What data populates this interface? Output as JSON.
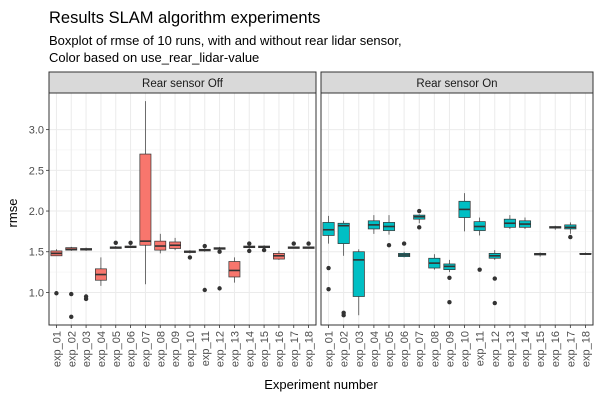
{
  "chart_data": {
    "type": "boxplot",
    "title": "Results SLAM algorithm experiments",
    "subtitle_lines": [
      "Boxplot of rmse of 10 runs, with and without rear lidar sensor,",
      "Color based on use_rear_lidar-value"
    ],
    "xlabel": "Experiment number",
    "ylabel": "rmse",
    "ylim": [
      0.6,
      3.45
    ],
    "yticks": [
      1.0,
      1.5,
      2.0,
      2.5,
      3.0
    ],
    "ytick_labels": [
      "1.0",
      "1.5",
      "2.0",
      "2.5",
      "3.0"
    ],
    "grid": true,
    "legend": "none",
    "categories": [
      "exp_01",
      "exp_02",
      "exp_03",
      "exp_04",
      "exp_05",
      "exp_06",
      "exp_07",
      "exp_08",
      "exp_09",
      "exp_10",
      "exp_11",
      "exp_12",
      "exp_13",
      "exp_14",
      "exp_15",
      "exp_16",
      "exp_17",
      "exp_18"
    ],
    "panels": [
      {
        "strip": "Rear sensor Off",
        "fill": "#F8766D",
        "boxes": [
          {
            "min": 1.45,
            "q1": 1.45,
            "median": 1.48,
            "q3": 1.51,
            "max": 1.53,
            "outliers": [
              0.99
            ]
          },
          {
            "min": 1.51,
            "q1": 1.52,
            "median": 1.53,
            "q3": 1.55,
            "max": 1.56,
            "outliers": [
              0.98,
              0.7
            ]
          },
          {
            "min": 1.51,
            "q1": 1.52,
            "median": 1.53,
            "q3": 1.54,
            "max": 1.55,
            "outliers": [
              0.95,
              0.92
            ]
          },
          {
            "min": 1.08,
            "q1": 1.15,
            "median": 1.22,
            "q3": 1.29,
            "max": 1.43,
            "outliers": []
          },
          {
            "min": 1.54,
            "q1": 1.54,
            "median": 1.55,
            "q3": 1.56,
            "max": 1.57,
            "outliers": [
              1.61
            ]
          },
          {
            "min": 1.55,
            "q1": 1.55,
            "median": 1.56,
            "q3": 1.57,
            "max": 1.58,
            "outliers": [
              1.61
            ]
          },
          {
            "min": 1.1,
            "q1": 1.58,
            "median": 1.63,
            "q3": 2.7,
            "max": 3.35,
            "outliers": []
          },
          {
            "min": 1.48,
            "q1": 1.52,
            "median": 1.57,
            "q3": 1.63,
            "max": 1.72,
            "outliers": []
          },
          {
            "min": 1.52,
            "q1": 1.54,
            "median": 1.58,
            "q3": 1.62,
            "max": 1.67,
            "outliers": []
          },
          {
            "min": 1.48,
            "q1": 1.49,
            "median": 1.5,
            "q3": 1.51,
            "max": 1.52,
            "outliers": [
              1.43
            ]
          },
          {
            "min": 1.5,
            "q1": 1.51,
            "median": 1.52,
            "q3": 1.53,
            "max": 1.54,
            "outliers": [
              1.57,
              1.03
            ]
          },
          {
            "min": 1.52,
            "q1": 1.53,
            "median": 1.54,
            "q3": 1.55,
            "max": 1.56,
            "outliers": [
              1.5,
              1.05
            ]
          },
          {
            "min": 1.12,
            "q1": 1.19,
            "median": 1.27,
            "q3": 1.38,
            "max": 1.43,
            "outliers": []
          },
          {
            "min": 1.54,
            "q1": 1.55,
            "median": 1.56,
            "q3": 1.57,
            "max": 1.58,
            "outliers": [
              1.6,
              1.51
            ]
          },
          {
            "min": 1.54,
            "q1": 1.55,
            "median": 1.56,
            "q3": 1.57,
            "max": 1.58,
            "outliers": [
              1.52
            ]
          },
          {
            "min": 1.4,
            "q1": 1.41,
            "median": 1.45,
            "q3": 1.48,
            "max": 1.51,
            "outliers": []
          },
          {
            "min": 1.54,
            "q1": 1.54,
            "median": 1.55,
            "q3": 1.56,
            "max": 1.56,
            "outliers": [
              1.6
            ]
          },
          {
            "min": 1.54,
            "q1": 1.54,
            "median": 1.55,
            "q3": 1.56,
            "max": 1.56,
            "outliers": [
              1.6
            ]
          }
        ]
      },
      {
        "strip": "Rear sensor On",
        "fill": "#00BFC4",
        "boxes": [
          {
            "min": 1.6,
            "q1": 1.7,
            "median": 1.77,
            "q3": 1.86,
            "max": 1.94,
            "outliers": [
              1.3,
              1.04
            ]
          },
          {
            "min": 1.45,
            "q1": 1.6,
            "median": 1.82,
            "q3": 1.85,
            "max": 1.88,
            "outliers": [
              0.75,
              0.72
            ]
          },
          {
            "min": 0.72,
            "q1": 0.95,
            "median": 1.4,
            "q3": 1.5,
            "max": 1.53,
            "outliers": []
          },
          {
            "min": 1.72,
            "q1": 1.78,
            "median": 1.83,
            "q3": 1.88,
            "max": 1.95,
            "outliers": []
          },
          {
            "min": 1.71,
            "q1": 1.76,
            "median": 1.81,
            "q3": 1.86,
            "max": 1.95,
            "outliers": [
              1.58
            ]
          },
          {
            "min": 1.43,
            "q1": 1.44,
            "median": 1.46,
            "q3": 1.48,
            "max": 1.5,
            "outliers": [
              1.6
            ]
          },
          {
            "min": 1.85,
            "q1": 1.9,
            "median": 1.93,
            "q3": 1.95,
            "max": 1.96,
            "outliers": [
              2.0,
              1.8
            ]
          },
          {
            "min": 1.28,
            "q1": 1.3,
            "median": 1.36,
            "q3": 1.42,
            "max": 1.47,
            "outliers": []
          },
          {
            "min": 1.25,
            "q1": 1.28,
            "median": 1.32,
            "q3": 1.35,
            "max": 1.4,
            "outliers": [
              1.18,
              0.88
            ]
          },
          {
            "min": 1.75,
            "q1": 1.92,
            "median": 2.02,
            "q3": 2.12,
            "max": 2.22,
            "outliers": []
          },
          {
            "min": 1.7,
            "q1": 1.76,
            "median": 1.81,
            "q3": 1.87,
            "max": 1.92,
            "outliers": [
              1.28
            ]
          },
          {
            "min": 1.4,
            "q1": 1.42,
            "median": 1.45,
            "q3": 1.48,
            "max": 1.52,
            "outliers": [
              1.17,
              0.87
            ]
          },
          {
            "min": 1.78,
            "q1": 1.8,
            "median": 1.85,
            "q3": 1.9,
            "max": 1.95,
            "outliers": []
          },
          {
            "min": 1.78,
            "q1": 1.8,
            "median": 1.84,
            "q3": 1.88,
            "max": 1.92,
            "outliers": []
          },
          {
            "min": 1.44,
            "q1": 1.46,
            "median": 1.47,
            "q3": 1.48,
            "max": 1.49,
            "outliers": []
          },
          {
            "min": 1.77,
            "q1": 1.79,
            "median": 1.8,
            "q3": 1.81,
            "max": 1.82,
            "outliers": []
          },
          {
            "min": 1.72,
            "q1": 1.78,
            "median": 1.8,
            "q3": 1.83,
            "max": 1.86,
            "outliers": [
              1.68
            ]
          },
          {
            "min": 1.46,
            "q1": 1.47,
            "median": 1.47,
            "q3": 1.48,
            "max": 1.49,
            "outliers": []
          }
        ]
      }
    ]
  }
}
